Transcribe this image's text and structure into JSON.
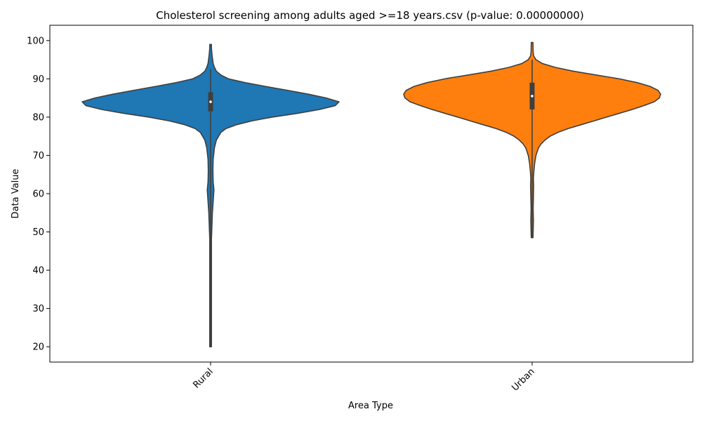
{
  "chart_data": {
    "type": "violin",
    "title": "Cholesterol screening among adults aged >=18 years.csv (p-value: 0.00000000)",
    "xlabel": "Area Type",
    "ylabel": "Data Value",
    "ylim": [
      16,
      104
    ],
    "yticks": [
      20,
      30,
      40,
      50,
      60,
      70,
      80,
      90,
      100
    ],
    "categories": [
      "Rural",
      "Urban"
    ],
    "grid": false,
    "series": [
      {
        "category": "Rural",
        "color": "#1f77b4",
        "min": 20,
        "max": 99,
        "q1": 81.5,
        "median": 84,
        "q3": 86.5,
        "whisker_low": 75.5,
        "whisker_high": 92.5,
        "density": [
          [
            20,
            0.0
          ],
          [
            30,
            0.0
          ],
          [
            40,
            0.002
          ],
          [
            48,
            0.005
          ],
          [
            55,
            0.014
          ],
          [
            58,
            0.02
          ],
          [
            61,
            0.026
          ],
          [
            63,
            0.02
          ],
          [
            66,
            0.018
          ],
          [
            69,
            0.02
          ],
          [
            72,
            0.03
          ],
          [
            74,
            0.045
          ],
          [
            76,
            0.08
          ],
          [
            77,
            0.12
          ],
          [
            78,
            0.2
          ],
          [
            79,
            0.32
          ],
          [
            80,
            0.48
          ],
          [
            81,
            0.68
          ],
          [
            82,
            0.85
          ],
          [
            83,
            0.97
          ],
          [
            84,
            1.0
          ],
          [
            85,
            0.9
          ],
          [
            86,
            0.76
          ],
          [
            87,
            0.6
          ],
          [
            88,
            0.43
          ],
          [
            89,
            0.27
          ],
          [
            90,
            0.14
          ],
          [
            91,
            0.08
          ],
          [
            92,
            0.045
          ],
          [
            93,
            0.03
          ],
          [
            94,
            0.02
          ],
          [
            96,
            0.012
          ],
          [
            98,
            0.006
          ],
          [
            99,
            0.0
          ]
        ]
      },
      {
        "category": "Urban",
        "color": "#ff7f0e",
        "min": 48.5,
        "max": 99.5,
        "q1": 82,
        "median": 85.5,
        "q3": 89,
        "whisker_low": 72.5,
        "whisker_high": 95,
        "density": [
          [
            48.5,
            0.0
          ],
          [
            50,
            0.008
          ],
          [
            53,
            0.01
          ],
          [
            56,
            0.008
          ],
          [
            59,
            0.01
          ],
          [
            62,
            0.012
          ],
          [
            64,
            0.01
          ],
          [
            66,
            0.014
          ],
          [
            68,
            0.02
          ],
          [
            70,
            0.03
          ],
          [
            72,
            0.05
          ],
          [
            73,
            0.07
          ],
          [
            74,
            0.1
          ],
          [
            75,
            0.14
          ],
          [
            76,
            0.2
          ],
          [
            77,
            0.28
          ],
          [
            78,
            0.38
          ],
          [
            79,
            0.48
          ],
          [
            80,
            0.58
          ],
          [
            81,
            0.68
          ],
          [
            82,
            0.78
          ],
          [
            83,
            0.87
          ],
          [
            84,
            0.95
          ],
          [
            85,
            0.99
          ],
          [
            86,
            1.0
          ],
          [
            87,
            0.98
          ],
          [
            88,
            0.92
          ],
          [
            89,
            0.82
          ],
          [
            90,
            0.68
          ],
          [
            91,
            0.5
          ],
          [
            92,
            0.32
          ],
          [
            93,
            0.18
          ],
          [
            94,
            0.08
          ],
          [
            95,
            0.03
          ],
          [
            96,
            0.012
          ],
          [
            97,
            0.008
          ],
          [
            99.5,
            0.0
          ]
        ]
      }
    ]
  }
}
